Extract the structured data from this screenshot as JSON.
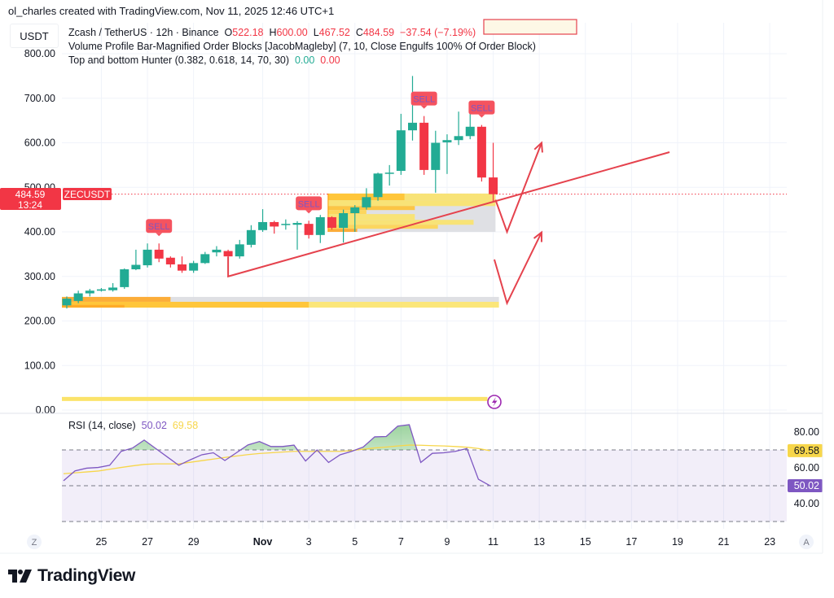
{
  "credit": "ol_charles created with TradingView.com, Nov 11, 2025 12:46 UTC+1",
  "legend": {
    "symbol": "Zcash / TetherUS · 12h · Binance",
    "o_label": "O",
    "o": "522.18",
    "h_label": "H",
    "h": "600.00",
    "l_label": "L",
    "l": "467.52",
    "c_label": "C",
    "c": "484.59",
    "change": "−37.54 (−7.19%)",
    "indicator1": "Volume Profile Bar-Magnified Order Blocks [JacobMagleby] (7, 10, Close Engulfs 100% Of Order Block)",
    "indicator2": "Top and bottom Hunter (0.382, 0.618, 14, 70, 30)",
    "indicator2_v1": "0.00",
    "indicator2_v2": "0.00"
  },
  "currency": "USDT",
  "price_label": {
    "price": "484.59",
    "countdown": "13:24",
    "symbol": "ZECUSDT"
  },
  "rsi_legend": {
    "name": "RSI (14, close)",
    "rsi": "50.02",
    "ma": "69.58"
  },
  "rsi_scale": {
    "ticks": [
      "80.00",
      "60.00",
      "40.00"
    ],
    "rsi_badge": "50.02",
    "ma_badge": "69.58"
  },
  "time_axis": {
    "labels": [
      "25",
      "27",
      "29",
      "Nov",
      "3",
      "5",
      "7",
      "9",
      "11",
      "13",
      "15",
      "17",
      "19",
      "21",
      "23"
    ],
    "left_button": "Z",
    "right_button": "A"
  },
  "logo": "TradingView",
  "signal_label": "SELL",
  "colors": {
    "up": "#22ab94",
    "down": "#f23645",
    "rsi": "#7e57c2",
    "rsi_ma": "#f7d64a",
    "order_block": "#ffa726",
    "drawing": "#e5424d"
  },
  "icons": {
    "alert": "lightning-icon"
  },
  "chart_data": [
    {
      "type": "candlestick",
      "title": "Zcash / TetherUS · 12h · Binance",
      "y_ticks": [
        "800.00",
        "700.00",
        "600.00",
        "500.00",
        "400.00",
        "300.00",
        "200.00",
        "100.00",
        "0.00"
      ],
      "ylim": [
        0,
        850
      ],
      "grid": true,
      "ohlc": [
        [
          235,
          255,
          228,
          250
        ],
        [
          245,
          268,
          240,
          262
        ],
        [
          262,
          272,
          255,
          268
        ],
        [
          268,
          274,
          266,
          271
        ],
        [
          269,
          285,
          266,
          275
        ],
        [
          276,
          318,
          272,
          316
        ],
        [
          316,
          360,
          314,
          326
        ],
        [
          325,
          374,
          320,
          360
        ],
        [
          360,
          374,
          332,
          340
        ],
        [
          342,
          345,
          320,
          327
        ],
        [
          327,
          345,
          308,
          313
        ],
        [
          313,
          335,
          308,
          330
        ],
        [
          330,
          355,
          328,
          350
        ],
        [
          354,
          368,
          345,
          360
        ],
        [
          357,
          360,
          343,
          345
        ],
        [
          345,
          382,
          340,
          372
        ],
        [
          371,
          415,
          365,
          404
        ],
        [
          404,
          451,
          400,
          422
        ],
        [
          422,
          425,
          396,
          412
        ],
        [
          417,
          428,
          405,
          418
        ],
        [
          416,
          424,
          360,
          420
        ],
        [
          418,
          425,
          385,
          393
        ],
        [
          393,
          438,
          375,
          433
        ],
        [
          433,
          435,
          405,
          409
        ],
        [
          409,
          450,
          376,
          442
        ],
        [
          442,
          460,
          400,
          455
        ],
        [
          455,
          498,
          450,
          478
        ],
        [
          478,
          533,
          470,
          531
        ],
        [
          531,
          550,
          504,
          533
        ],
        [
          537,
          665,
          528,
          628
        ],
        [
          628,
          750,
          605,
          645
        ],
        [
          645,
          660,
          528,
          539
        ],
        [
          539,
          627,
          488,
          600
        ],
        [
          601,
          619,
          530,
          606
        ],
        [
          606,
          670,
          595,
          615
        ],
        [
          615,
          687,
          608,
          636
        ],
        [
          636,
          640,
          513,
          522
        ],
        [
          522.18,
          600,
          467.52,
          484.59
        ]
      ],
      "sell_signals_bar_index": [
        8,
        21,
        31,
        36
      ],
      "last_price": 484.59,
      "order_blocks": [
        {
          "from_bar": 0,
          "to_bar": 37.5,
          "bands": [
            {
              "lo": 243,
              "hi": 254,
              "to_bar": 37.5,
              "color": "#dcdde1"
            },
            {
              "lo": 243,
              "hi": 254,
              "to_bar": 9,
              "color": "#ffa726"
            },
            {
              "lo": 230,
              "hi": 243,
              "to_bar": 37.5,
              "color": "#fbe36a"
            },
            {
              "lo": 230,
              "hi": 243,
              "to_bar": 21,
              "color": "#ffc233"
            },
            {
              "lo": 230,
              "hi": 236,
              "to_bar": 5,
              "color": "#ffa726"
            }
          ]
        },
        {
          "from_bar": 23.1,
          "to_bar": 37.2,
          "bands": [
            {
              "lo": 400,
              "hi": 486,
              "to_bar": 37.2,
              "color": "#dcdde1"
            },
            {
              "lo": 471,
              "hi": 486,
              "to_bar": 37.2,
              "color": "#fbe36a"
            },
            {
              "lo": 471,
              "hi": 486,
              "to_bar": 29.3,
              "color": "#ffc233"
            },
            {
              "lo": 458,
              "hi": 471,
              "to_bar": 37.2,
              "color": "#fbe36a"
            },
            {
              "lo": 449,
              "hi": 458,
              "to_bar": 30.2,
              "color": "#ffc233"
            },
            {
              "lo": 440,
              "hi": 449,
              "to_bar": 26,
              "color": "#ffd54f"
            },
            {
              "lo": 427,
              "hi": 440,
              "to_bar": 30.2,
              "color": "#fbe36a"
            },
            {
              "lo": 416,
              "hi": 427,
              "to_bar": 35.3,
              "color": "#fbe36a"
            },
            {
              "lo": 407,
              "hi": 416,
              "to_bar": 32.2,
              "color": "#ffd54f"
            },
            {
              "lo": 400,
              "hi": 407,
              "to_bar": 25.2,
              "color": "#ffa726"
            }
          ]
        }
      ],
      "volume_bar": {
        "price": 24,
        "to_bar": 36.5,
        "color": "#fbe36a"
      },
      "drawings": {
        "trendline": [
          [
            14,
            344
          ],
          [
            14,
            300
          ],
          [
            52.3,
            579
          ]
        ],
        "arrow_up_1": [
          [
            37.2,
            472
          ],
          [
            38.2,
            400
          ],
          [
            41.2,
            600
          ]
        ],
        "arrow_up_2": [
          [
            37.1,
            338
          ],
          [
            38.2,
            240
          ],
          [
            41.2,
            399
          ]
        ]
      }
    },
    {
      "type": "line",
      "title": "RSI (14, close)",
      "ylim": [
        25,
        90
      ],
      "bands": [
        70,
        50,
        30
      ],
      "series": [
        {
          "name": "RSI",
          "values": [
            52.8,
            58.3,
            59.8,
            60.2,
            61.4,
            69.2,
            71.1,
            75.5,
            70.8,
            66.1,
            61.4,
            64.5,
            67.3,
            68.4,
            64.1,
            68.4,
            72.8,
            74.7,
            71.9,
            71.9,
            72.7,
            63.8,
            70.0,
            63.0,
            67.3,
            69.2,
            71.6,
            77.3,
            77.5,
            83.3,
            84.1,
            63.0,
            68.1,
            68.4,
            69.2,
            70.8,
            53.6,
            50.02
          ]
        },
        {
          "name": "RSI-based MA",
          "values": [
            56.7,
            57.2,
            57.7,
            58.2,
            59.2,
            60.2,
            61.1,
            61.9,
            62.2,
            62.2,
            62.2,
            63.1,
            64.0,
            64.9,
            65.8,
            66.6,
            67.4,
            68.0,
            68.4,
            68.8,
            69.2,
            69.2,
            69.2,
            69.2,
            69.2,
            69.6,
            70.4,
            71.1,
            71.6,
            72.2,
            72.7,
            72.6,
            72.4,
            72.2,
            71.9,
            71.5,
            70.8,
            69.58
          ]
        }
      ]
    }
  ]
}
